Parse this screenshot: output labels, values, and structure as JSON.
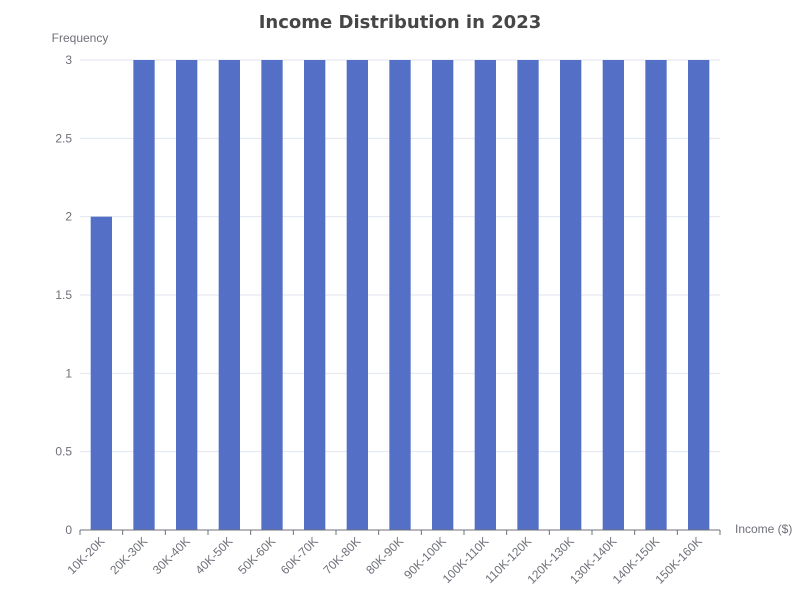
{
  "chart_data": {
    "type": "bar",
    "title": "Income Distribution in 2023",
    "xlabel": "Income ($)",
    "ylabel": "Frequency",
    "categories": [
      "10K-20K",
      "20K-30K",
      "30K-40K",
      "40K-50K",
      "50K-60K",
      "60K-70K",
      "70K-80K",
      "80K-90K",
      "90K-100K",
      "100K-110K",
      "110K-120K",
      "120K-130K",
      "130K-140K",
      "140K-150K",
      "150K-160K"
    ],
    "values": [
      2,
      3,
      3,
      3,
      3,
      3,
      3,
      3,
      3,
      3,
      3,
      3,
      3,
      3,
      3
    ],
    "ylim": [
      0,
      3
    ],
    "yticks": [
      "0",
      "0.5",
      "1",
      "1.5",
      "2",
      "2.5",
      "3"
    ],
    "grid": true,
    "colors": {
      "bar": "#5470c6"
    }
  }
}
